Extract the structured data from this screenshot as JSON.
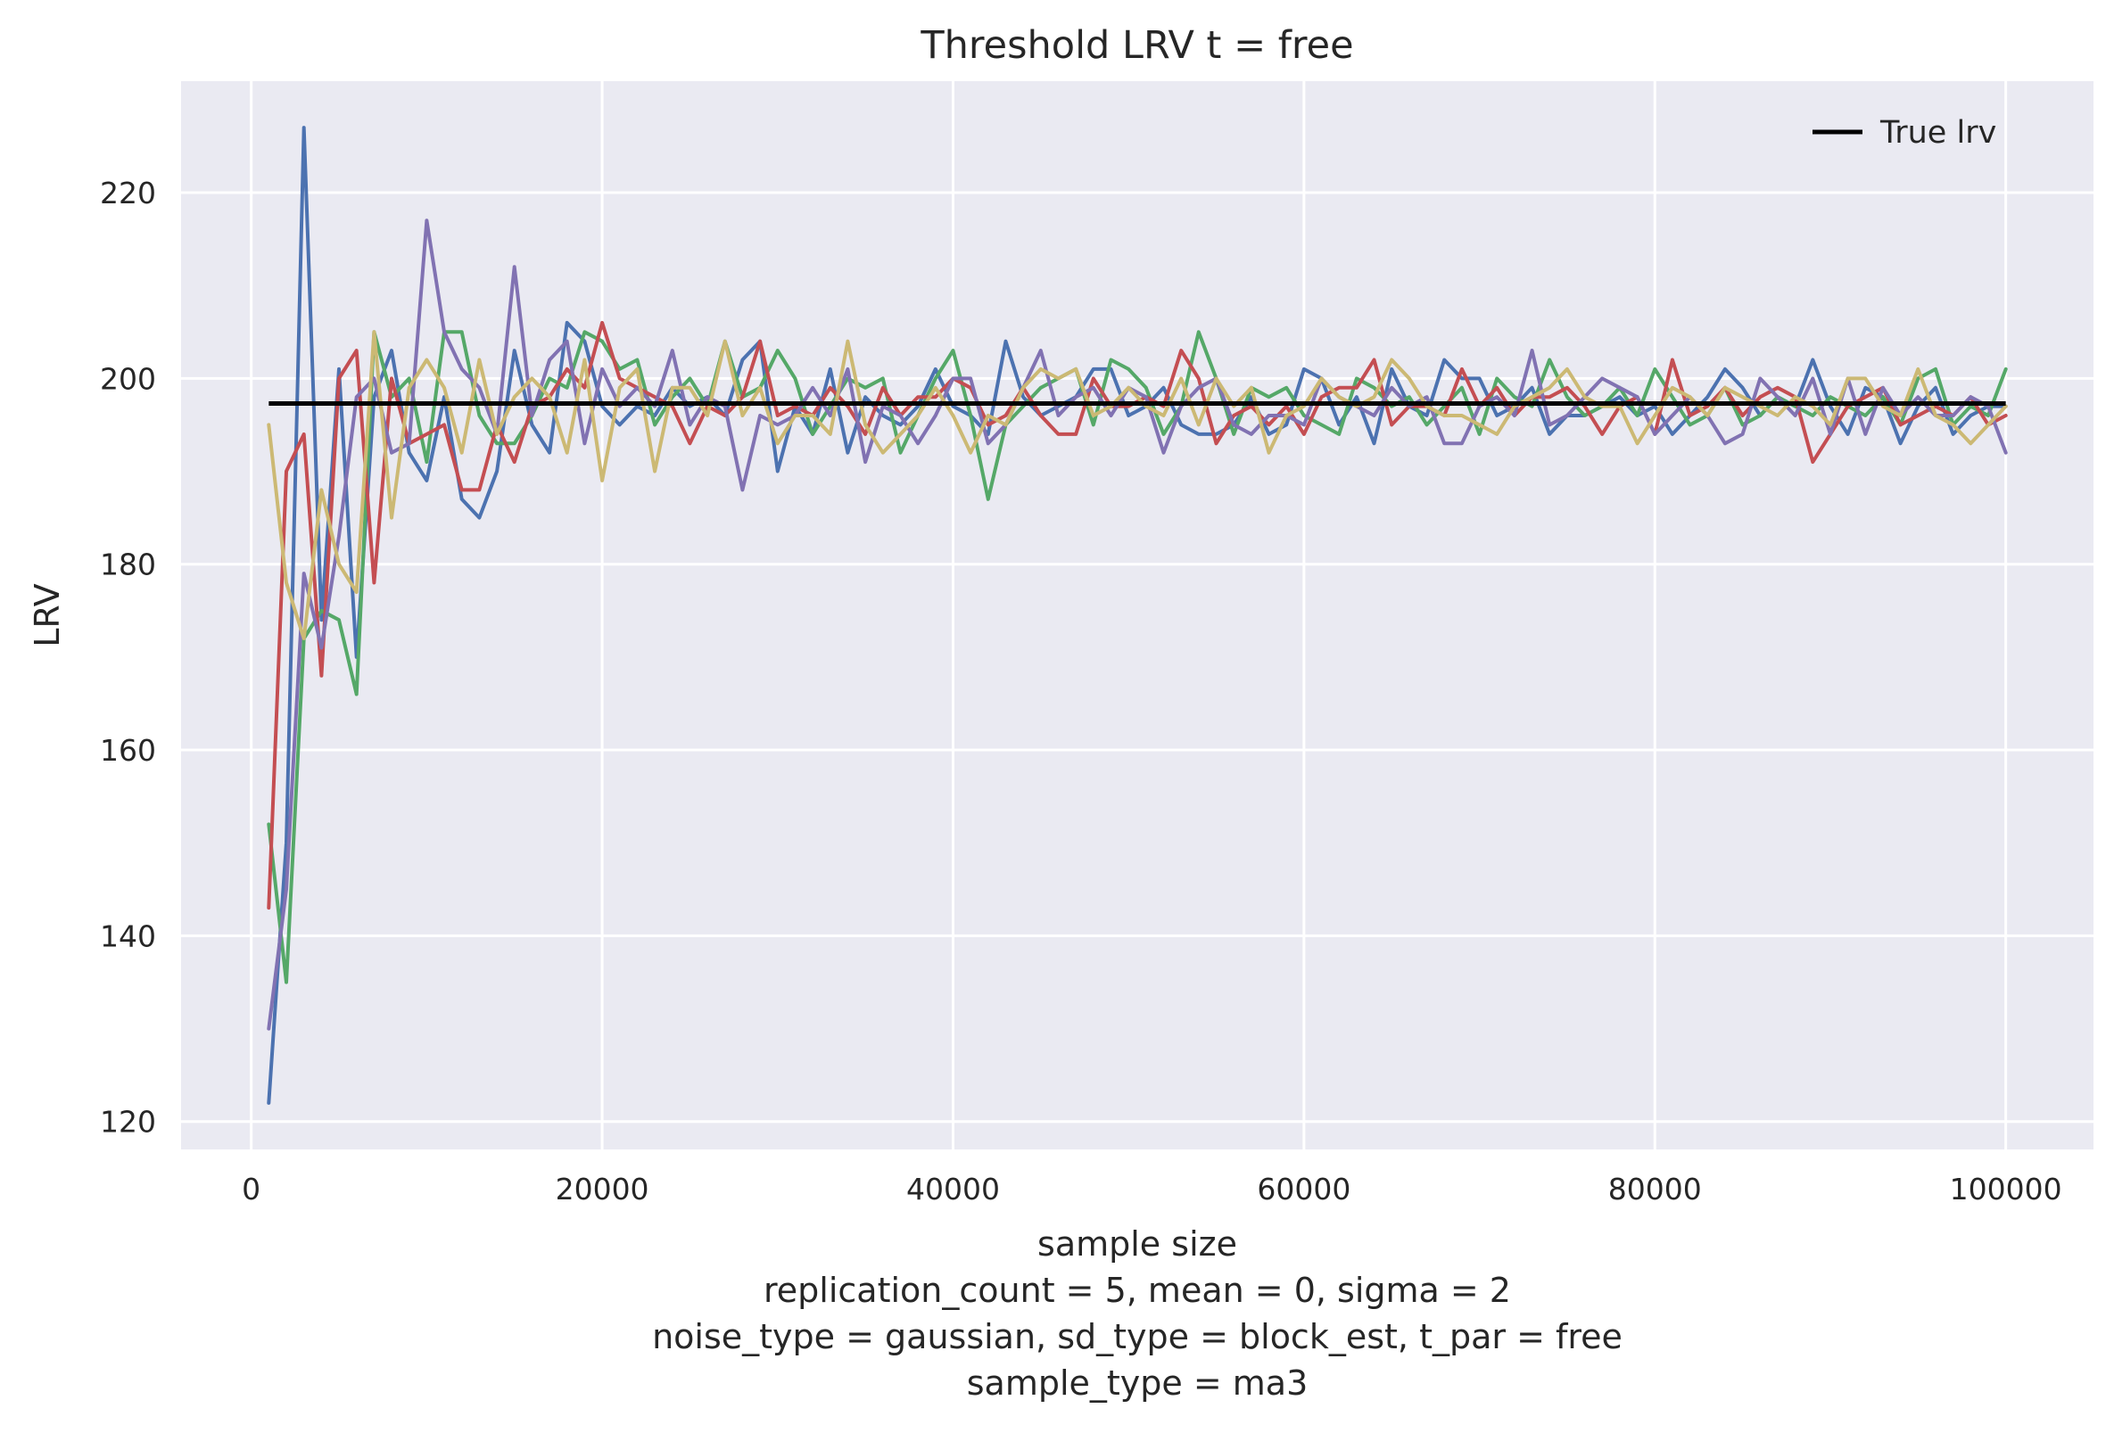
{
  "chart_data": {
    "type": "line",
    "title": "Threshold LRV t = free",
    "xlabel": "sample size",
    "xlabel_lines": [
      "replication_count = 5, mean = 0, sigma = 2",
      "noise_type = gaussian, sd_type = block_est, t_par = free",
      "sample_type = ma3"
    ],
    "ylabel": "LRV",
    "xlim": [
      -4000,
      105000
    ],
    "ylim": [
      117,
      232
    ],
    "xticks": [
      0,
      20000,
      40000,
      60000,
      80000,
      100000
    ],
    "xtick_labels": [
      "0",
      "20000",
      "40000",
      "60000",
      "80000",
      "100000"
    ],
    "yticks": [
      120,
      140,
      160,
      180,
      200,
      220
    ],
    "ytick_labels": [
      "120",
      "140",
      "160",
      "180",
      "200",
      "220"
    ],
    "grid": true,
    "legend_position": "top-right",
    "legend": [
      {
        "label": "True lrv",
        "color": "#000000"
      }
    ],
    "true_lrv": {
      "name": "True lrv",
      "value": 197.3,
      "x_start": 1000,
      "x_end": 100000,
      "color": "#000000"
    },
    "x": [
      1000,
      2000,
      3000,
      4000,
      5000,
      6000,
      7000,
      8000,
      9000,
      10000,
      11000,
      12000,
      13000,
      14000,
      15000,
      16000,
      17000,
      18000,
      19000,
      20000,
      21000,
      22000,
      23000,
      24000,
      25000,
      26000,
      27000,
      28000,
      29000,
      30000,
      31000,
      32000,
      33000,
      34000,
      35000,
      36000,
      37000,
      38000,
      39000,
      40000,
      41000,
      42000,
      43000,
      44000,
      45000,
      46000,
      47000,
      48000,
      49000,
      50000,
      51000,
      52000,
      53000,
      54000,
      55000,
      56000,
      57000,
      58000,
      59000,
      60000,
      61000,
      62000,
      63000,
      64000,
      65000,
      66000,
      67000,
      68000,
      69000,
      70000,
      71000,
      72000,
      73000,
      74000,
      75000,
      76000,
      77000,
      78000,
      79000,
      80000,
      81000,
      82000,
      83000,
      84000,
      85000,
      86000,
      87000,
      88000,
      89000,
      90000,
      91000,
      92000,
      93000,
      94000,
      95000,
      96000,
      97000,
      98000,
      99000,
      100000
    ],
    "series": [
      {
        "color": "#4c72b0",
        "values": [
          122,
          150,
          227,
          174,
          201,
          170,
          198,
          203,
          192,
          189,
          198,
          187,
          185,
          190,
          203,
          195,
          192,
          206,
          204,
          197,
          195,
          197,
          196,
          199,
          197,
          198,
          196,
          202,
          204,
          190,
          197,
          194,
          201,
          192,
          198,
          196,
          195,
          197,
          201,
          197,
          196,
          194,
          204,
          198,
          196,
          197,
          198,
          201,
          201,
          196,
          197,
          199,
          195,
          194,
          194,
          195,
          198,
          194,
          195,
          201,
          200,
          195,
          198,
          193,
          201,
          197,
          196,
          202,
          200,
          200,
          196,
          197,
          199,
          194,
          196,
          196,
          197,
          198,
          196,
          197,
          194,
          196,
          198,
          201,
          199,
          196,
          198,
          197,
          202,
          197,
          194,
          199,
          198,
          193,
          197,
          199,
          194,
          196,
          197,
          197
        ]
      },
      {
        "color": "#55a868",
        "values": [
          152,
          135,
          172,
          175,
          174,
          166,
          205,
          198,
          200,
          191,
          205,
          205,
          196,
          193,
          193,
          196,
          200,
          199,
          205,
          204,
          201,
          202,
          195,
          198,
          200,
          197,
          204,
          198,
          199,
          203,
          200,
          194,
          197,
          200,
          199,
          200,
          192,
          196,
          200,
          203,
          196,
          187,
          195,
          197,
          199,
          200,
          201,
          195,
          202,
          201,
          199,
          194,
          197,
          205,
          200,
          194,
          199,
          198,
          199,
          196,
          195,
          194,
          200,
          199,
          197,
          198,
          195,
          197,
          199,
          194,
          200,
          198,
          197,
          202,
          198,
          196,
          197,
          199,
          196,
          201,
          198,
          195,
          196,
          199,
          195,
          196,
          198,
          197,
          196,
          198,
          197,
          196,
          198,
          195,
          200,
          201,
          195,
          197,
          196,
          201
        ]
      },
      {
        "color": "#c44e52",
        "values": [
          143,
          190,
          194,
          168,
          200,
          203,
          178,
          200,
          193,
          194,
          195,
          188,
          188,
          195,
          191,
          197,
          198,
          201,
          199,
          206,
          200,
          199,
          198,
          197,
          193,
          197,
          196,
          198,
          204,
          196,
          197,
          196,
          199,
          197,
          194,
          199,
          196,
          198,
          198,
          200,
          199,
          195,
          196,
          199,
          196,
          194,
          194,
          200,
          197,
          197,
          198,
          197,
          203,
          200,
          193,
          196,
          197,
          195,
          197,
          194,
          198,
          199,
          199,
          202,
          195,
          197,
          197,
          196,
          201,
          197,
          199,
          196,
          198,
          198,
          199,
          197,
          194,
          197,
          198,
          194,
          202,
          196,
          197,
          199,
          196,
          198,
          199,
          198,
          191,
          194,
          197,
          198,
          199,
          195,
          196,
          197,
          196,
          198,
          195,
          196
        ]
      },
      {
        "color": "#8172b2",
        "values": [
          130,
          145,
          179,
          171,
          183,
          198,
          200,
          192,
          193,
          217,
          205,
          201,
          199,
          194,
          212,
          196,
          202,
          204,
          193,
          201,
          197,
          199,
          197,
          203,
          195,
          198,
          197,
          188,
          196,
          195,
          196,
          199,
          196,
          201,
          191,
          197,
          196,
          193,
          196,
          200,
          200,
          193,
          195,
          199,
          203,
          196,
          198,
          199,
          196,
          199,
          198,
          192,
          197,
          199,
          200,
          195,
          194,
          196,
          196,
          195,
          200,
          198,
          197,
          196,
          199,
          197,
          198,
          193,
          193,
          197,
          198,
          196,
          203,
          195,
          196,
          198,
          200,
          199,
          198,
          194,
          196,
          198,
          196,
          193,
          194,
          200,
          198,
          196,
          200,
          194,
          200,
          194,
          199,
          196,
          198,
          196,
          196,
          198,
          197,
          192
        ]
      },
      {
        "color": "#ccb974",
        "values": [
          195,
          178,
          172,
          188,
          180,
          177,
          205,
          185,
          199,
          202,
          199,
          192,
          202,
          194,
          198,
          200,
          198,
          192,
          202,
          189,
          199,
          201,
          190,
          199,
          199,
          196,
          204,
          196,
          199,
          193,
          196,
          196,
          194,
          204,
          195,
          192,
          194,
          196,
          199,
          196,
          192,
          196,
          195,
          199,
          201,
          200,
          201,
          196,
          197,
          199,
          197,
          196,
          200,
          195,
          200,
          197,
          199,
          192,
          196,
          197,
          200,
          198,
          197,
          198,
          202,
          200,
          197,
          196,
          196,
          195,
          194,
          197,
          198,
          199,
          201,
          198,
          197,
          197,
          193,
          196,
          199,
          198,
          196,
          199,
          198,
          197,
          196,
          198,
          197,
          195,
          200,
          200,
          197,
          196,
          201,
          196,
          195,
          193,
          195,
          197
        ]
      }
    ]
  }
}
